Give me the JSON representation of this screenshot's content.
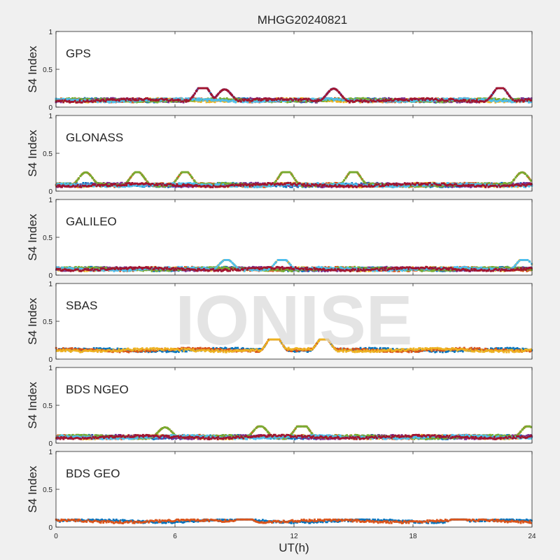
{
  "figure": {
    "title": "MHGG20240821",
    "watermark": "IONISE",
    "xlabel": "UT(h)",
    "background": "#f0f0f0",
    "axes_background": "#ffffff"
  },
  "chart_data": {
    "type": "scatter",
    "xlim": [
      0,
      24
    ],
    "ylim": [
      0,
      1
    ],
    "x_ticks": [
      0,
      6,
      12,
      18,
      24
    ],
    "y_ticks": [
      0,
      0.5,
      1
    ],
    "y_tick_labels": [
      "0",
      "0.5",
      "1"
    ],
    "ylabel": "S4 Index",
    "grid": false,
    "series_colors": [
      "#0072BD",
      "#D95319",
      "#EDB120",
      "#7E2F8E",
      "#77AC30",
      "#4DBEEE",
      "#A2142F"
    ],
    "panels": [
      {
        "name": "GPS",
        "series_count": 7,
        "baseline_s4": 0.09,
        "max_s4": 0.25,
        "peaks": [
          [
            7.4,
            0.24
          ],
          [
            8.5,
            0.18
          ],
          [
            14.0,
            0.19
          ],
          [
            22.4,
            0.22
          ]
        ]
      },
      {
        "name": "GLONASS",
        "series_count": 7,
        "baseline_s4": 0.08,
        "max_s4": 0.25,
        "peaks": [
          [
            1.5,
            0.2
          ],
          [
            4.1,
            0.21
          ],
          [
            6.5,
            0.22
          ],
          [
            11.6,
            0.24
          ],
          [
            15.0,
            0.23
          ],
          [
            23.5,
            0.2
          ]
        ]
      },
      {
        "name": "GALILEO",
        "series_count": 7,
        "baseline_s4": 0.08,
        "max_s4": 0.2,
        "peaks": [
          [
            8.6,
            0.16
          ],
          [
            11.4,
            0.18
          ],
          [
            23.6,
            0.18
          ]
        ]
      },
      {
        "name": "SBAS",
        "series_count": 3,
        "baseline_s4": 0.12,
        "max_s4": 0.26,
        "peaks": [
          [
            11.0,
            0.25
          ],
          [
            13.5,
            0.22
          ]
        ]
      },
      {
        "name": "BDS NGEO",
        "series_count": 7,
        "baseline_s4": 0.08,
        "max_s4": 0.22,
        "peaks": [
          [
            5.5,
            0.16
          ],
          [
            10.3,
            0.18
          ],
          [
            12.4,
            0.22
          ],
          [
            23.8,
            0.18
          ]
        ]
      },
      {
        "name": "BDS GEO",
        "series_count": 2,
        "baseline_s4": 0.08,
        "max_s4": 0.1,
        "peaks": [
          [
            9.5,
            0.1
          ],
          [
            20.3,
            0.09
          ]
        ]
      }
    ]
  }
}
